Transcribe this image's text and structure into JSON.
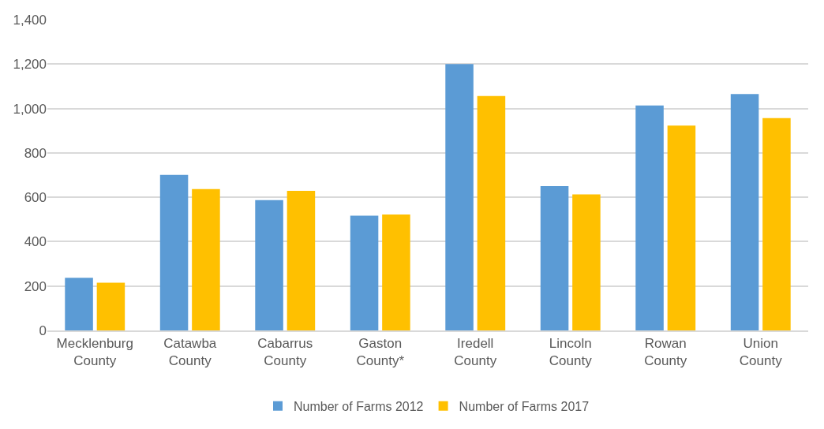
{
  "chart_data": {
    "type": "bar",
    "categories": [
      "Mecklenburg County",
      "Catawba County",
      "Cabarrus County",
      "Gaston County*",
      "Iredell County",
      "Lincoln County",
      "Rowan County",
      "Union County"
    ],
    "series": [
      {
        "name": "Number of Farms 2012",
        "color": "#5b9bd5",
        "values": [
          237,
          701,
          587,
          517,
          1200,
          650,
          1014,
          1065
        ]
      },
      {
        "name": "Number of Farms 2017",
        "color": "#ffc000",
        "values": [
          215,
          637,
          629,
          522,
          1056,
          613,
          923,
          957
        ]
      }
    ],
    "ylim": [
      0,
      1400
    ],
    "yticks": [
      {
        "value": 0,
        "label": "0"
      },
      {
        "value": 200,
        "label": "200"
      },
      {
        "value": 400,
        "label": "400"
      },
      {
        "value": 600,
        "label": "600"
      },
      {
        "value": 800,
        "label": "800"
      },
      {
        "value": 1000,
        "label": "1,000"
      },
      {
        "value": 1200,
        "label": "1,200"
      },
      {
        "value": 1400,
        "label": "1,400"
      }
    ],
    "grid": "y",
    "legend": "bottom"
  }
}
